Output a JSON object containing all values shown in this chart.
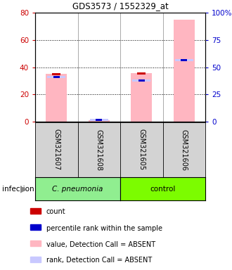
{
  "title": "GDS3573 / 1552329_at",
  "samples": [
    "GSM321607",
    "GSM321608",
    "GSM321605",
    "GSM321606"
  ],
  "pink_bars": [
    35.0,
    1.0,
    35.5,
    75.0
  ],
  "blue_markers": [
    33.0,
    1.2,
    30.0,
    45.0
  ],
  "red_markers": [
    35.0,
    null,
    35.5,
    null
  ],
  "ylim_left": [
    0,
    80
  ],
  "ylim_right": [
    0,
    100
  ],
  "left_ticks": [
    0,
    20,
    40,
    60,
    80
  ],
  "right_ticks": [
    0,
    25,
    50,
    75,
    100
  ],
  "right_tick_labels": [
    "0",
    "25",
    "50",
    "75",
    "100%"
  ],
  "left_color": "#cc0000",
  "right_color": "#0000cc",
  "pink_color": "#ffb6c1",
  "light_blue_color": "#c8c8ff",
  "red_color": "#cc0000",
  "blue_color": "#0000cc",
  "sample_box_color": "#d3d3d3",
  "cpneumonia_color": "#90ee90",
  "control_color": "#7cfc00",
  "legend_items": [
    {
      "color": "#cc0000",
      "label": "count"
    },
    {
      "color": "#0000cc",
      "label": "percentile rank within the sample"
    },
    {
      "color": "#ffb6c1",
      "label": "value, Detection Call = ABSENT"
    },
    {
      "color": "#c8c8ff",
      "label": "rank, Detection Call = ABSENT"
    }
  ],
  "infection_label": "infection"
}
